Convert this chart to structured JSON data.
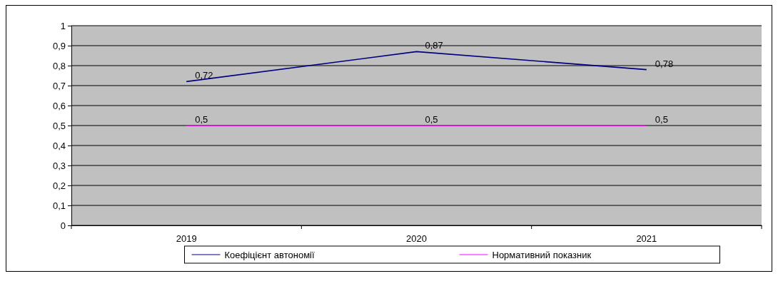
{
  "chart_data": {
    "type": "line",
    "categories": [
      "2019",
      "2020",
      "2021"
    ],
    "series": [
      {
        "name": "Коефіцієнт автономії",
        "color": "#000080",
        "values": [
          0.72,
          0.87,
          0.78
        ],
        "value_labels": [
          "0,72",
          "0,87",
          "0,78"
        ]
      },
      {
        "name": "Нормативний показник",
        "color": "#ff00ff",
        "values": [
          0.5,
          0.5,
          0.5
        ],
        "value_labels": [
          "0,5",
          "0,5",
          "0,5"
        ]
      }
    ],
    "ylim": [
      0,
      1
    ],
    "yticks": [
      0,
      {
        "value": 0.1,
        "label": "0,1"
      },
      {
        "value": 0.2,
        "label": "0,2"
      },
      {
        "value": 0.3,
        "label": "0,3"
      },
      {
        "value": 0.4,
        "label": "0,4"
      },
      {
        "value": 0.5,
        "label": "0,5"
      },
      {
        "value": 0.6,
        "label": "0,6"
      },
      {
        "value": 0.7,
        "label": "0,7"
      },
      {
        "value": 0.8,
        "label": "0,8"
      },
      {
        "value": 0.9,
        "label": "0,9"
      },
      1
    ],
    "grid": "y",
    "legend": "bottom",
    "marker": "none",
    "line_style": "solid"
  }
}
